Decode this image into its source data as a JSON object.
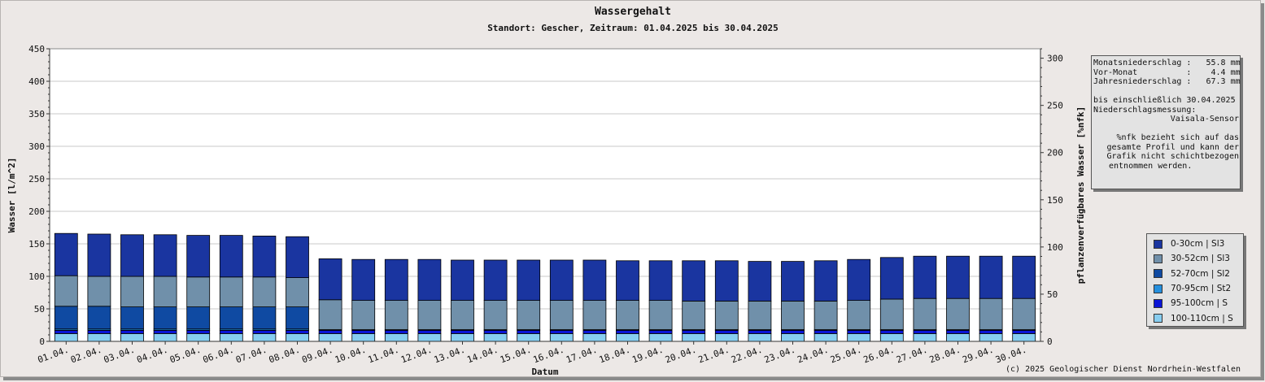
{
  "chart_data": {
    "type": "bar",
    "stacked": true,
    "title": "Wassergehalt",
    "subtitle": "Standort: Gescher, Zeitraum: 01.04.2025 bis 30.04.2025",
    "xlabel": "Datum",
    "ylabel": "Wasser [l/m^2]",
    "y2label": "pflanzenverfügbares Wasser [%nfk]",
    "ylim": [
      0,
      450
    ],
    "y2lim": [
      0,
      310
    ],
    "yticks": [
      0,
      50,
      100,
      150,
      200,
      250,
      300,
      350,
      400,
      450
    ],
    "y2ticks": [
      0,
      50,
      100,
      150,
      200,
      250,
      300
    ],
    "grid": true,
    "legend_position": "right",
    "categories": [
      "01.04.",
      "02.04.",
      "03.04.",
      "04.04.",
      "05.04.",
      "06.04.",
      "07.04.",
      "08.04.",
      "09.04.",
      "10.04.",
      "11.04.",
      "12.04.",
      "13.04.",
      "14.04.",
      "15.04.",
      "16.04.",
      "17.04.",
      "18.04.",
      "19.04.",
      "20.04.",
      "21.04.",
      "22.04.",
      "23.04.",
      "24.04.",
      "25.04.",
      "26.04.",
      "27.04.",
      "28.04.",
      "29.04.",
      "30.04."
    ],
    "series": [
      {
        "name": "100-110cm | S",
        "color": "#87cdf0",
        "values": [
          12,
          12,
          12,
          12,
          12,
          12,
          12,
          12,
          12,
          12,
          12,
          12,
          12,
          12,
          12,
          12,
          12,
          12,
          12,
          12,
          12,
          12,
          12,
          12,
          12,
          12,
          12,
          12,
          12,
          12
        ]
      },
      {
        "name": "95-100cm | S",
        "color": "#0a14d6",
        "values": [
          5,
          5,
          5,
          5,
          5,
          5,
          5,
          5,
          5,
          5,
          5,
          5,
          5,
          5,
          5,
          5,
          5,
          5,
          5,
          5,
          5,
          5,
          5,
          5,
          5,
          5,
          5,
          5,
          5,
          5
        ]
      },
      {
        "name": "70-95cm | St2",
        "color": "#2590de",
        "values": [
          2,
          2,
          2,
          2,
          2,
          2,
          2,
          2,
          1,
          1,
          1,
          1,
          1,
          1,
          1,
          1,
          1,
          1,
          1,
          1,
          1,
          1,
          1,
          1,
          1,
          1,
          1,
          1,
          1,
          1
        ]
      },
      {
        "name": "52-70cm | Sl2",
        "color": "#0f4aa2",
        "values": [
          35,
          35,
          34,
          34,
          34,
          34,
          34,
          34,
          0,
          0,
          0,
          0,
          0,
          0,
          0,
          0,
          0,
          0,
          0,
          0,
          0,
          0,
          0,
          0,
          0,
          0,
          0,
          0,
          0,
          0
        ]
      },
      {
        "name": "30-52cm | Sl3",
        "color": "#7090aa",
        "values": [
          47,
          46,
          47,
          47,
          46,
          46,
          46,
          45,
          46,
          45,
          45,
          45,
          45,
          45,
          45,
          45,
          45,
          45,
          45,
          44,
          44,
          44,
          44,
          44,
          45,
          47,
          48,
          48,
          48,
          48
        ]
      },
      {
        "name": "0-30cm | Sl3",
        "color": "#1a35a0",
        "values": [
          65,
          65,
          64,
          64,
          64,
          64,
          63,
          63,
          63,
          63,
          63,
          63,
          62,
          62,
          62,
          62,
          62,
          61,
          61,
          62,
          62,
          61,
          61,
          62,
          63,
          64,
          65,
          65,
          65,
          65
        ]
      }
    ],
    "legend_order": [
      "0-30cm | Sl3",
      "30-52cm | Sl3",
      "52-70cm | Sl2",
      "70-95cm | St2",
      "95-100cm | S",
      "100-110cm | S"
    ]
  },
  "info_box": {
    "line1": "Monatsniederschlag :   55.8 mm",
    "line2": "Vor-Monat          :    4.4 mm",
    "line3": "Jahresniederschlag :   67.3 mm",
    "line4": "bis einschließlich 30.04.2025",
    "line5": "Niederschlagsmessung:",
    "line6": "Vaisala-Sensor",
    "line7": "%nfk bezieht sich auf das",
    "line8": "gesamte Profil und kann der",
    "line9": "Grafik nicht schichtbezogen",
    "line10": "entnommen werden."
  },
  "copyright": "(c) 2025 Geologischer Dienst Nordrhein-Westfalen"
}
